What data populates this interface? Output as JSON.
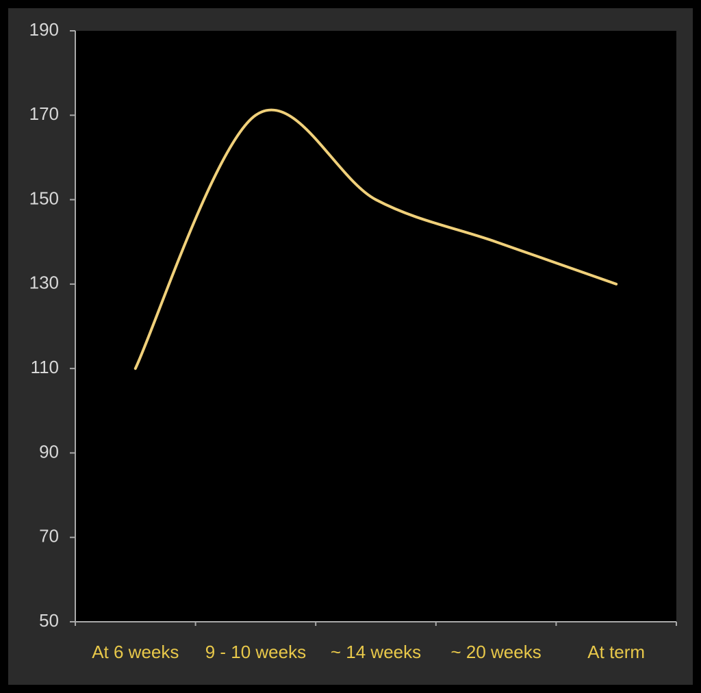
{
  "chart_data": {
    "type": "line",
    "categories": [
      "At 6 weeks",
      "9 - 10 weeks",
      "~ 14 weeks",
      "~ 20 weeks",
      "At term"
    ],
    "values": [
      110,
      170,
      150,
      140,
      130
    ],
    "color": "#f0d07a",
    "ylim": [
      50,
      190
    ],
    "yticks": [
      50,
      70,
      90,
      110,
      130,
      150,
      170,
      190
    ],
    "smooth": true
  }
}
